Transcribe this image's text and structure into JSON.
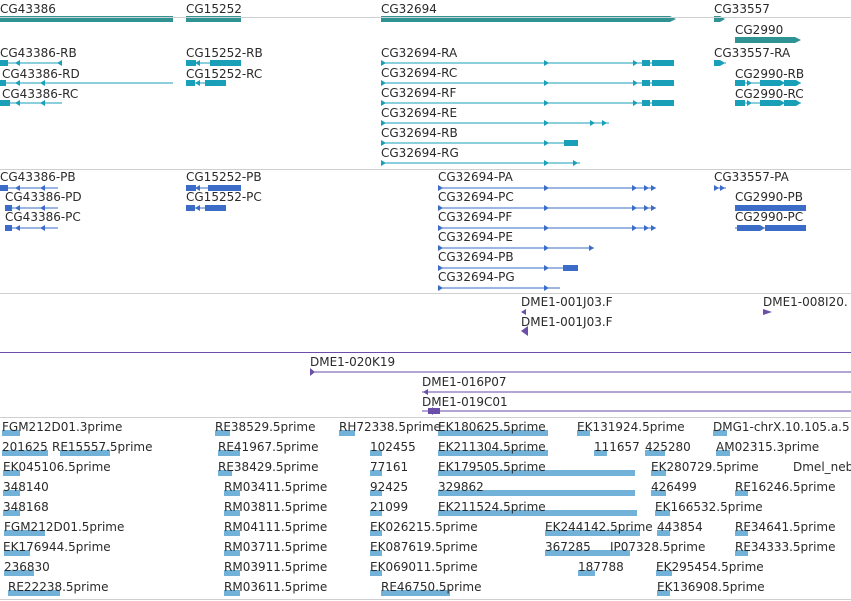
{
  "colors": {
    "gene": "#2f9393",
    "transcript": "#1a9fb8",
    "protein": "#3a6cc8",
    "clone": "#6a4ea8",
    "est": "#72b2d8",
    "separator": "#cfcfcf"
  },
  "gene_track": {
    "labels": [
      "CG43386",
      "CG15252",
      "CG32694",
      "CG33557",
      "CG2990"
    ]
  },
  "transcript_track": {
    "labels": [
      "CG43386-RB",
      "CG43386-RD",
      "CG43386-RC",
      "CG15252-RB",
      "CG15252-RC",
      "CG32694-RA",
      "CG32694-RC",
      "CG32694-RF",
      "CG32694-RE",
      "CG32694-RB",
      "CG32694-RG",
      "CG33557-RA",
      "CG2990-RB",
      "CG2990-RC"
    ]
  },
  "protein_track": {
    "labels": [
      "CG43386-PB",
      "CG43386-PD",
      "CG43386-PC",
      "CG15252-PB",
      "CG15252-PC",
      "CG32694-PA",
      "CG32694-PC",
      "CG32694-PF",
      "CG32694-PE",
      "CG32694-PB",
      "CG32694-PG",
      "CG33557-PA",
      "CG2990-PB",
      "CG2990-PC"
    ]
  },
  "clone_track": {
    "labels": [
      "DME1-001J03.F",
      "DME1-001J03.F",
      "DME1-008I20."
    ]
  },
  "bac_track": {
    "labels": [
      "DME1-020K19",
      "DME1-016P07",
      "DME1-019C01"
    ]
  },
  "est_track": {
    "labels": [
      "FGM212D01.3prime",
      "201625",
      "RE15557.5prime",
      "EK045106.5prime",
      "348140",
      "348168",
      "FGM212D01.5prime",
      "EK176944.5prime",
      "236830",
      "RE22238.5prime",
      "RE38529.5prime",
      "RE41967.5prime",
      "RE38429.5prime",
      "RM03411.5prime",
      "RM03811.5prime",
      "RM04111.5prime",
      "RM03711.5prime",
      "RM03911.5prime",
      "RM03611.5prime",
      "RH72338.5prime",
      "102455",
      "77161",
      "92425",
      "21099",
      "EK180625.5prime",
      "EK211304.5prime",
      "EK179505.5prime",
      "329862",
      "EK211524.5prime",
      "EK026215.5prime",
      "EK087619.5prime",
      "EK069011.5prime",
      "RE46750.5prime",
      "EK131924.5prime",
      "111657",
      "425280",
      "EK280729.5prime",
      "426499",
      "EK166532.5prime",
      "EK244142.5prime",
      "443854",
      "367285",
      "IP07328.5prime",
      "187788",
      "EK295454.5prime",
      "EK136908.5prime",
      "DMG1-chrX.10.105.a.5",
      "AM02315.3prime",
      "Dmel_neb",
      "RE16246.5prime",
      "RE34641.5prime",
      "RE34333.5prime"
    ]
  }
}
